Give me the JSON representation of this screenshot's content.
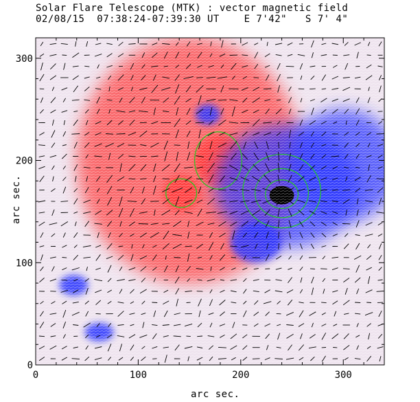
{
  "chart_data": {
    "type": "heatmap",
    "title": "Solar Flare Telescope (MTK) : vector magnetic field",
    "subtitle": "02/08/15  07:38:24-07:39:30 UT    E 7'42\"   S 7' 4\"",
    "xlabel": "arc sec.",
    "ylabel": "arc sec.",
    "xlim": [
      0,
      340
    ],
    "ylim": [
      0,
      320
    ],
    "x_ticks": [
      0,
      100,
      200,
      300
    ],
    "y_ticks": [
      0,
      100,
      200,
      300
    ],
    "x_tick_labels": [
      "0",
      "100",
      "200",
      "300"
    ],
    "y_tick_labels": [
      "0",
      "100",
      "200",
      "300"
    ],
    "colors": {
      "positive": "#ff3a3a",
      "positive_light": "#f5a8a8",
      "negative": "#2830ff",
      "negative_light": "#9aa6f0",
      "sunspot": "#000000",
      "contour": "#22cc22",
      "background": "#efe4ef",
      "vector": "#000000"
    },
    "regions": [
      {
        "name": "positive-large",
        "polarity": "positive",
        "x": 150,
        "y": 200,
        "rx": 110,
        "ry": 120
      },
      {
        "name": "positive-core",
        "polarity": "positive",
        "x": 180,
        "y": 200,
        "rx": 25,
        "ry": 25
      },
      {
        "name": "positive-spot",
        "polarity": "positive",
        "x": 142,
        "y": 168,
        "rx": 18,
        "ry": 18
      },
      {
        "name": "negative-main",
        "polarity": "negative",
        "x": 245,
        "y": 175,
        "rx": 70,
        "ry": 60
      },
      {
        "name": "negative-east",
        "polarity": "negative",
        "x": 300,
        "y": 195,
        "rx": 55,
        "ry": 55
      },
      {
        "name": "negative-south",
        "polarity": "negative",
        "x": 215,
        "y": 120,
        "rx": 25,
        "ry": 20
      },
      {
        "name": "negative-small-1",
        "polarity": "negative",
        "x": 37,
        "y": 78,
        "rx": 14,
        "ry": 10
      },
      {
        "name": "negative-small-2",
        "polarity": "negative",
        "x": 62,
        "y": 32,
        "rx": 14,
        "ry": 9
      },
      {
        "name": "negative-north",
        "polarity": "negative",
        "x": 168,
        "y": 245,
        "rx": 12,
        "ry": 10
      }
    ],
    "sunspot": {
      "x": 240,
      "y": 166,
      "rx": 12,
      "ry": 9
    },
    "contours": [
      {
        "name": "contour-positive-spot",
        "x": 142,
        "y": 168,
        "rx": 15,
        "ry": 14
      },
      {
        "name": "contour-positive-core",
        "x": 178,
        "y": 200,
        "rx": 23,
        "ry": 28
      },
      {
        "name": "contour-negative-1",
        "x": 240,
        "y": 170,
        "rx": 38,
        "ry": 36
      },
      {
        "name": "contour-negative-2",
        "x": 240,
        "y": 168,
        "rx": 26,
        "ry": 24
      },
      {
        "name": "contour-negative-3",
        "x": 240,
        "y": 167,
        "rx": 16,
        "ry": 14
      }
    ]
  }
}
